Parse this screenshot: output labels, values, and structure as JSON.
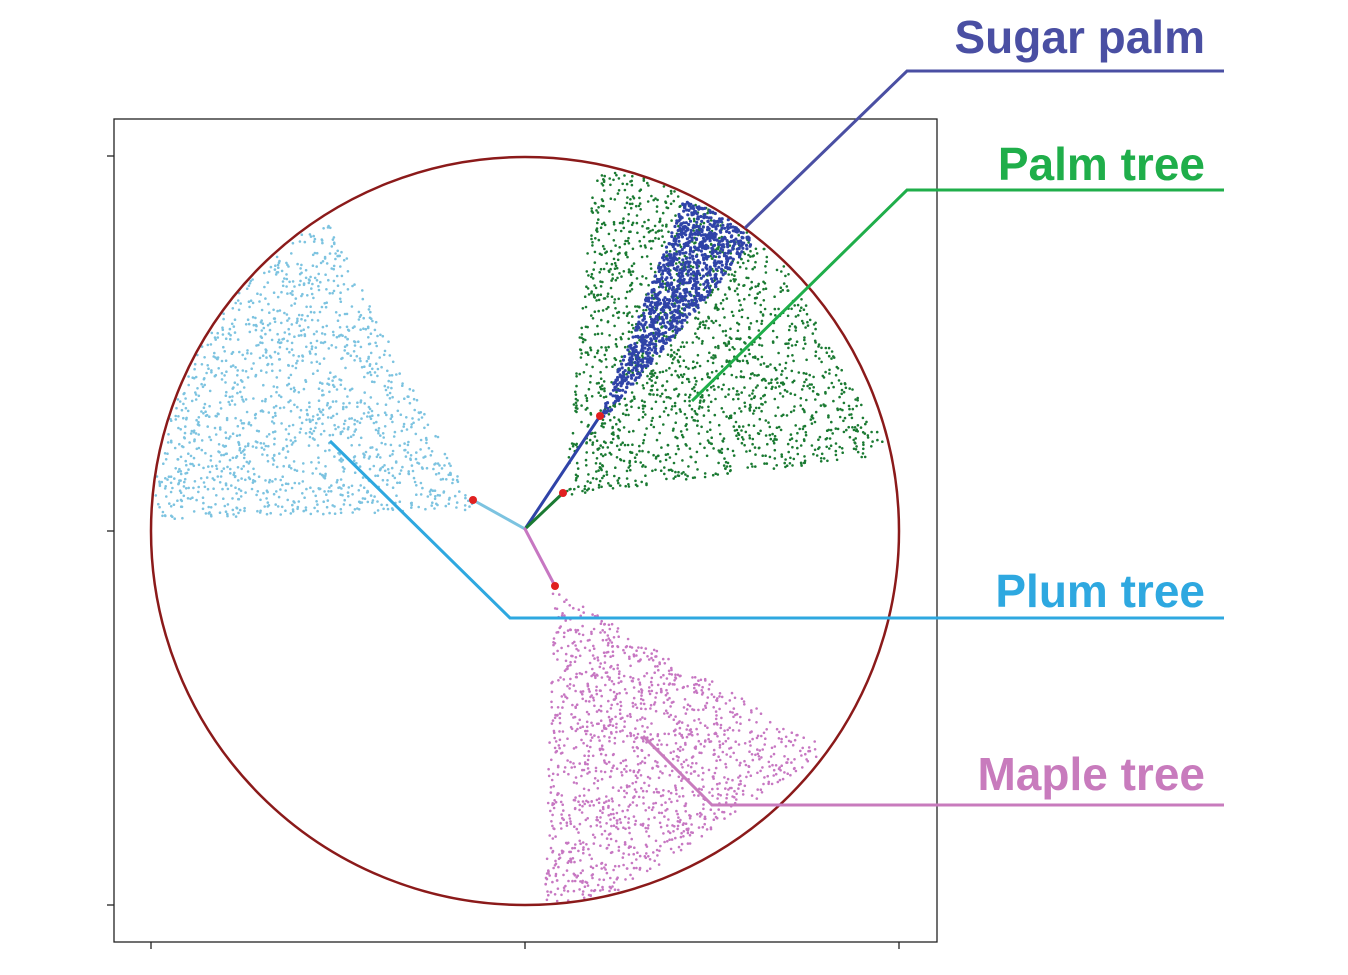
{
  "diagram": {
    "circle_color": "#8b1a1a",
    "cone_colors": {
      "sugar_palm": "#2f43a8",
      "palm_tree": "#1a7a32",
      "plum_tree": "#7cc3e0",
      "maple_tree": "#c777c2"
    },
    "labels": [
      {
        "id": "sugar-palm",
        "text": "Sugar palm",
        "color": "#4a4fa3"
      },
      {
        "id": "palm-tree",
        "text": "Palm tree",
        "color": "#1fae4a"
      },
      {
        "id": "plum-tree",
        "text": "Plum tree",
        "color": "#2ea8e0"
      },
      {
        "id": "maple-tree",
        "text": "Maple tree",
        "color": "#c87bbd"
      }
    ],
    "leader_colors": {
      "sugar_palm": "#4a4fa3",
      "palm_tree": "#1fae4a",
      "plum_tree": "#2ea8e0",
      "maple_tree": "#c87bbd"
    },
    "point_marker_color": "#e02020"
  }
}
